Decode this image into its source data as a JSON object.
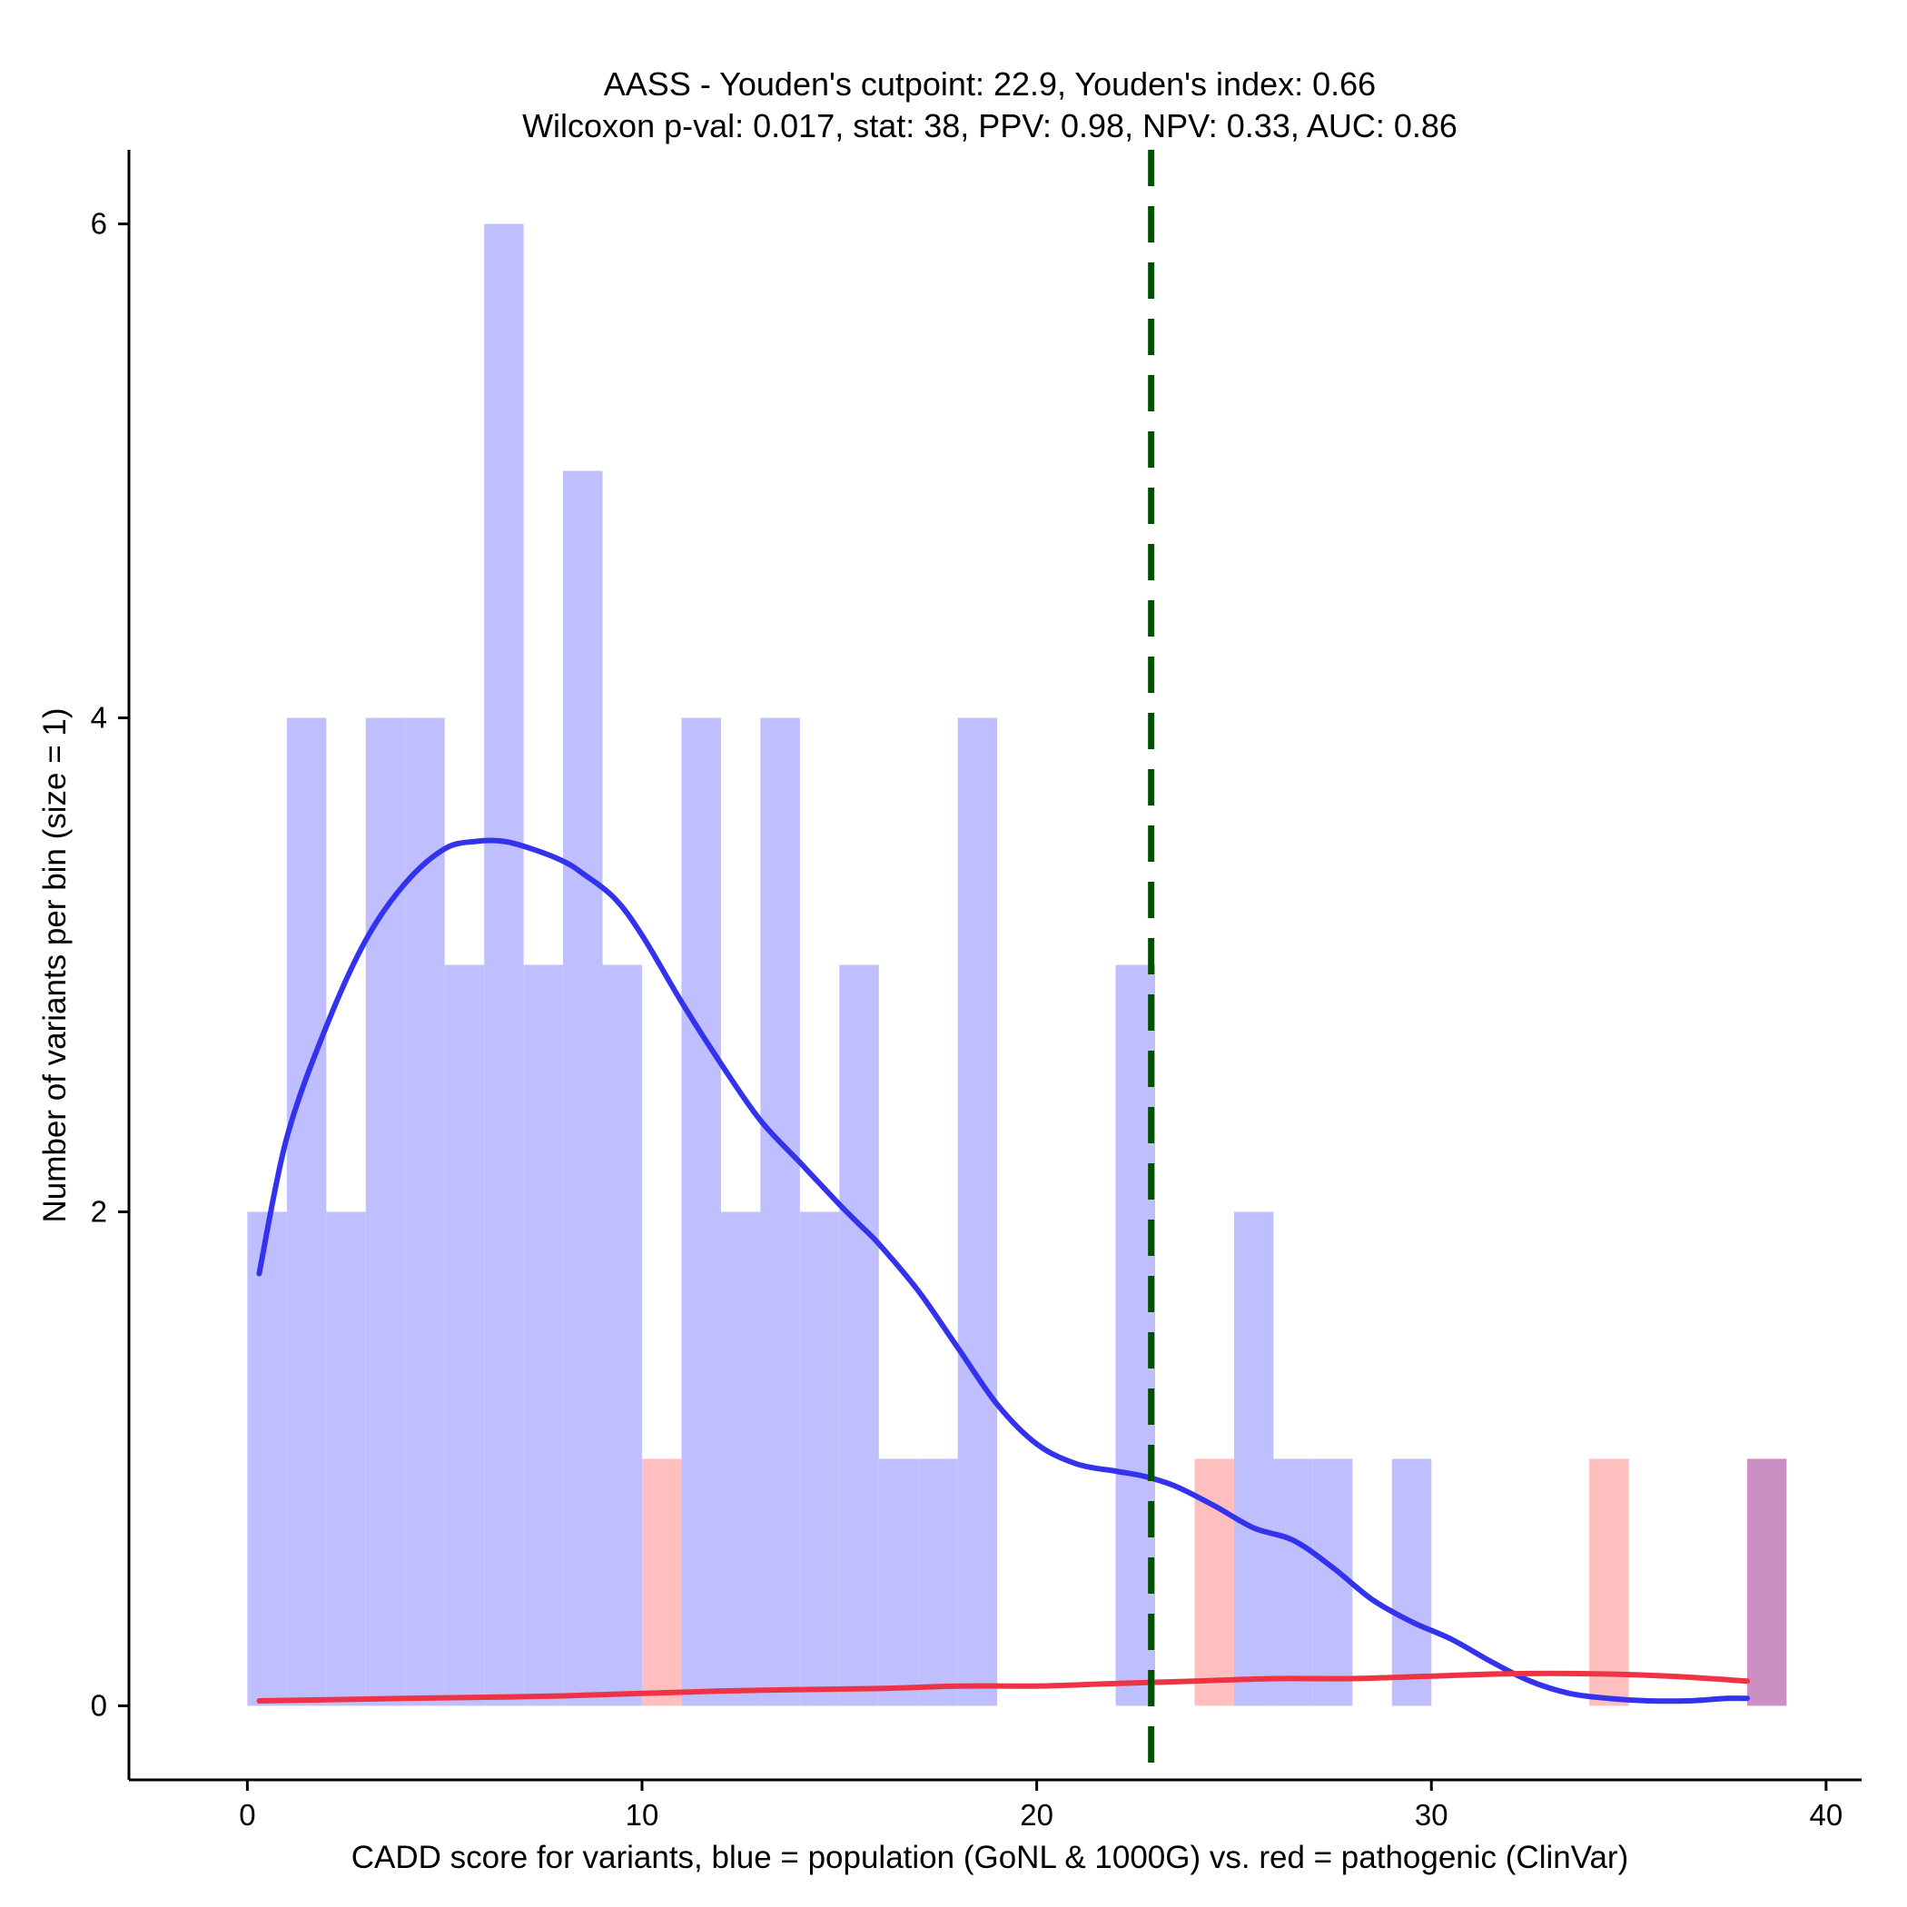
{
  "chart_data": {
    "type": "bar",
    "title_line1": "AASS - Youden's cutpoint: 22.9, Youden's index: 0.66",
    "title_line2": "Wilcoxon p-val: 0.017, stat: 38, PPV: 0.98, NPV: 0.33, AUC: 0.86",
    "xlabel": "CADD score for variants, blue = population (GoNL & 1000G) vs. red = pathogenic (ClinVar)",
    "ylabel": "Number of variants per bin (size = 1)",
    "xlim": [
      -3,
      40.9
    ],
    "ylim": [
      -0.3,
      6.3
    ],
    "x_ticks": [
      0,
      10,
      20,
      30,
      40
    ],
    "y_ticks": [
      0,
      2,
      4,
      6
    ],
    "bin_width": 1,
    "cutpoint": 22.9,
    "colors": {
      "population": "#bfbfff",
      "pathogenic": "#ffbfbf",
      "overlap": "#cc8fc3",
      "population_line": "#3333ee",
      "pathogenic_line": "#ee3344",
      "cutpoint_line": "#005000"
    },
    "series": [
      {
        "name": "population",
        "bin_starts": [
          0,
          1,
          2,
          3,
          4,
          5,
          6,
          7,
          8,
          9,
          11,
          12,
          13,
          14,
          15,
          16,
          17,
          18,
          22,
          25,
          26,
          27,
          29,
          38
        ],
        "values": [
          2,
          4,
          2,
          4,
          4,
          3,
          6,
          3,
          5,
          3,
          4,
          2,
          4,
          2,
          3,
          1,
          1,
          4,
          3,
          2,
          1,
          1,
          1,
          1
        ]
      },
      {
        "name": "pathogenic",
        "bin_starts": [
          10,
          24,
          34,
          38
        ],
        "values": [
          1,
          1,
          1,
          1
        ]
      }
    ],
    "density_population": {
      "x": [
        0.3,
        1,
        2,
        3,
        4,
        5,
        5.8,
        6.5,
        7.2,
        8,
        8.5,
        9.3,
        10,
        11,
        12,
        13,
        14,
        15,
        15.5,
        16,
        17,
        18,
        19,
        20,
        21,
        22,
        22.7,
        23.5,
        24.5,
        25.5,
        26.5,
        27.5,
        28.5,
        29.5,
        30.5,
        31.5,
        32.5,
        33.5,
        34.5,
        35.5,
        36.5,
        37.5,
        38
      ],
      "y": [
        1.75,
        2.3,
        2.75,
        3.1,
        3.33,
        3.47,
        3.5,
        3.5,
        3.47,
        3.42,
        3.37,
        3.27,
        3.12,
        2.85,
        2.6,
        2.37,
        2.2,
        2.03,
        1.95,
        1.87,
        1.68,
        1.45,
        1.22,
        1.06,
        0.98,
        0.95,
        0.93,
        0.89,
        0.81,
        0.72,
        0.67,
        0.56,
        0.43,
        0.34,
        0.27,
        0.18,
        0.1,
        0.05,
        0.03,
        0.02,
        0.02,
        0.03,
        0.03
      ]
    },
    "density_pathogenic": {
      "x": [
        0.3,
        4,
        8,
        12,
        16,
        18,
        20,
        22,
        24,
        26,
        28,
        30,
        32,
        34,
        36,
        38
      ],
      "y": [
        0.02,
        0.03,
        0.04,
        0.06,
        0.07,
        0.08,
        0.08,
        0.09,
        0.1,
        0.11,
        0.11,
        0.12,
        0.13,
        0.13,
        0.12,
        0.1
      ]
    }
  }
}
